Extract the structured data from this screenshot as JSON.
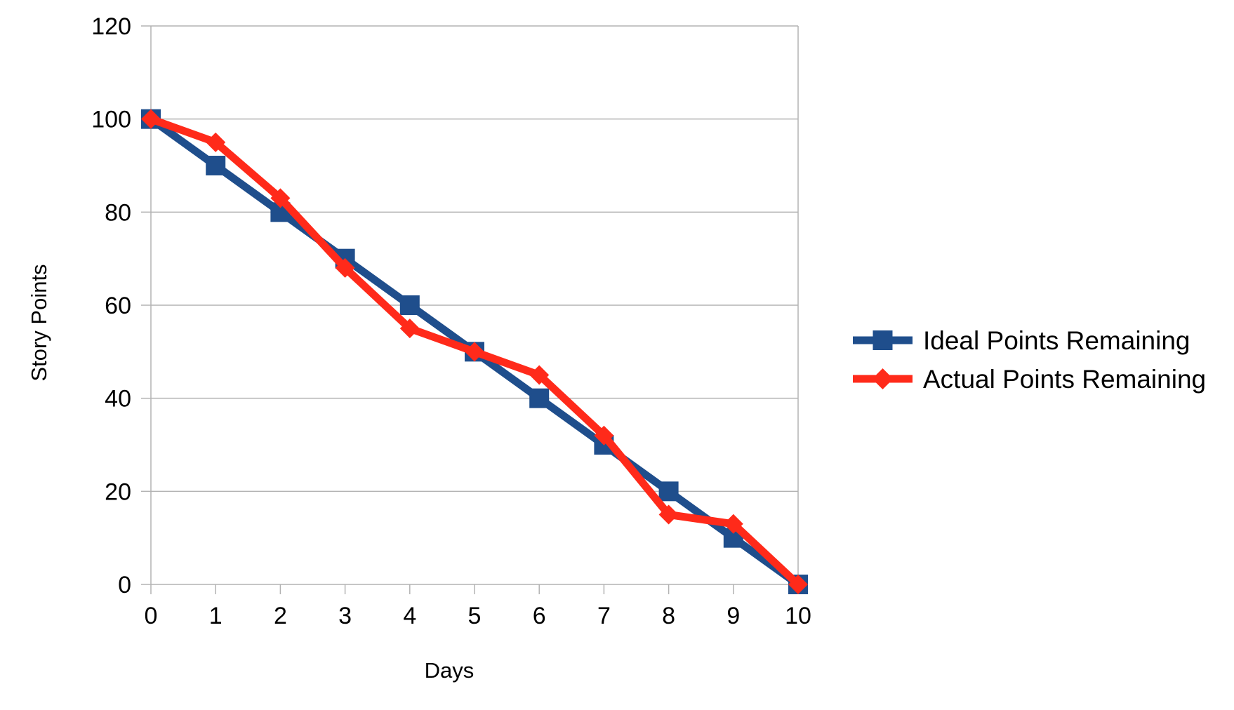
{
  "chart_data": {
    "type": "line",
    "x": [
      0,
      1,
      2,
      3,
      4,
      5,
      6,
      7,
      8,
      9,
      10
    ],
    "series": [
      {
        "name": "Ideal Points Remaining",
        "color": "#1f4e8c",
        "marker": "square",
        "values": [
          100,
          90,
          80,
          70,
          60,
          50,
          40,
          30,
          20,
          10,
          0
        ]
      },
      {
        "name": "Actual Points Remaining",
        "color": "#ff2a1a",
        "marker": "diamond",
        "values": [
          100,
          95,
          83,
          68,
          55,
          50,
          45,
          32,
          15,
          13,
          0
        ]
      }
    ],
    "xlabel": "Days",
    "ylabel": "Story Points",
    "xlim": [
      0,
      10
    ],
    "ylim": [
      0,
      120
    ],
    "yticks": [
      "0",
      "20",
      "40",
      "60",
      "80",
      "100",
      "120"
    ],
    "xticks": [
      "0",
      "1",
      "2",
      "3",
      "4",
      "5",
      "6",
      "7",
      "8",
      "9",
      "10"
    ],
    "grid": true,
    "legend_position": "right"
  }
}
